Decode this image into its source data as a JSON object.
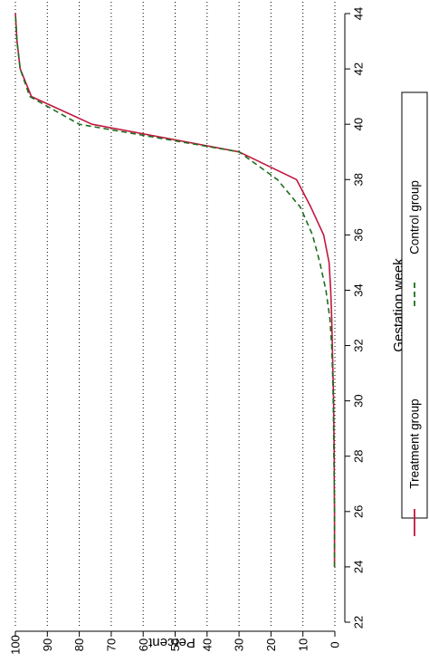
{
  "chart_data": {
    "type": "line",
    "orientation": "rotated-90-clockwise",
    "xlabel": "Gestation week",
    "ylabel": "Percent",
    "xlim": [
      21.5,
      44.5
    ],
    "ylim": [
      0,
      100
    ],
    "x_ticks": [
      "22",
      "24",
      "26",
      "28",
      "30",
      "32",
      "34",
      "36",
      "38",
      "40",
      "42",
      "44"
    ],
    "y_ticks": [
      "0",
      "10",
      "20",
      "30",
      "40",
      "50",
      "60",
      "70",
      "80",
      "90",
      "100"
    ],
    "grid": "dotted lines at each y tick",
    "legend_position": "right",
    "series": [
      {
        "name": "Treatment group",
        "color": "#c0163e",
        "dash": "solid",
        "x": [
          24,
          25,
          26,
          27,
          28,
          29,
          30,
          31,
          32,
          33,
          34,
          35,
          36,
          37,
          38,
          39,
          40,
          41,
          42,
          43,
          44
        ],
        "y": [
          0.1,
          0.1,
          0.1,
          0.2,
          0.2,
          0.3,
          0.4,
          0.6,
          0.8,
          1.0,
          1.3,
          1.8,
          3.5,
          7.5,
          12,
          30,
          76,
          95,
          98.5,
          99.5,
          100
        ]
      },
      {
        "name": "Control group",
        "color": "#1e6e1e",
        "dash": "dashed",
        "x": [
          24,
          25,
          26,
          27,
          28,
          29,
          30,
          31,
          32,
          33,
          34,
          35,
          36,
          37,
          38,
          39,
          40,
          41,
          42,
          43,
          44
        ],
        "y": [
          0.1,
          0.1,
          0.1,
          0.2,
          0.3,
          0.4,
          0.5,
          0.7,
          1.0,
          1.6,
          2.8,
          4.7,
          7.0,
          10.8,
          18,
          30,
          80,
          95.5,
          98.5,
          99.5,
          100
        ]
      }
    ]
  }
}
